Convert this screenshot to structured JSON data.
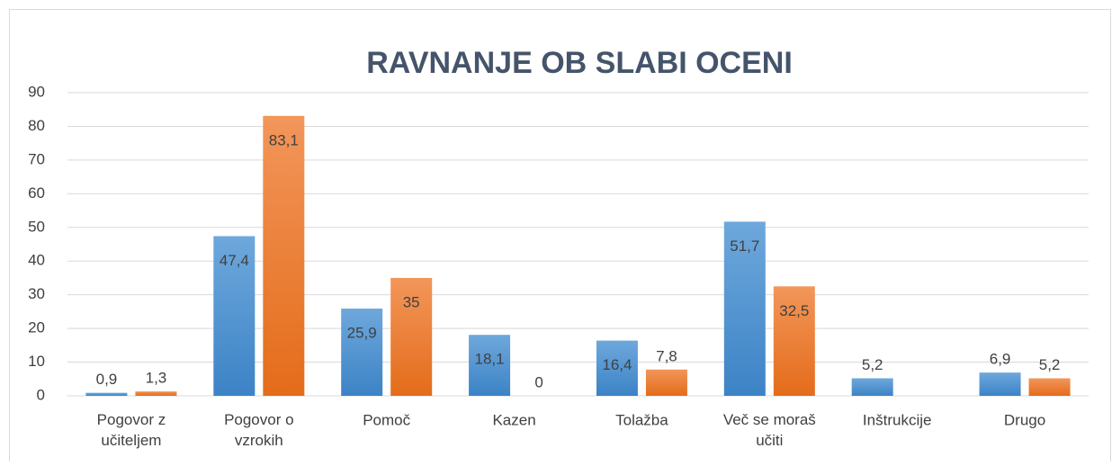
{
  "chart_data": {
    "type": "bar",
    "title": "RAVNANJE OB SLABI OCENI",
    "categories": [
      "Pogovor z\nučiteljem",
      "Pogovor  o\nvzrokih",
      "Pomoč",
      "Kazen",
      "Tolažba",
      "Več se moraš\nučiti",
      "Inštrukcije",
      "Drugo"
    ],
    "series": [
      {
        "color": "#5b9bd5",
        "values": [
          0.9,
          47.4,
          25.9,
          18.1,
          16.4,
          51.7,
          5.2,
          6.9
        ],
        "value_labels": [
          "0,9",
          "47,4",
          "25,9",
          "18,1",
          "16,4",
          "51,7",
          "5,2",
          "6,9"
        ]
      },
      {
        "color": "#ed7d31",
        "values": [
          1.3,
          83.1,
          35,
          0,
          7.8,
          32.5,
          null,
          5.2
        ],
        "value_labels": [
          "1,3",
          "83,1",
          "35",
          "0",
          "7,8",
          "32,5",
          null,
          "5,2"
        ]
      }
    ],
    "ylim": [
      0,
      90
    ],
    "yticks": [
      0,
      10,
      20,
      30,
      40,
      50,
      60,
      70,
      80,
      90
    ],
    "grid": true
  }
}
